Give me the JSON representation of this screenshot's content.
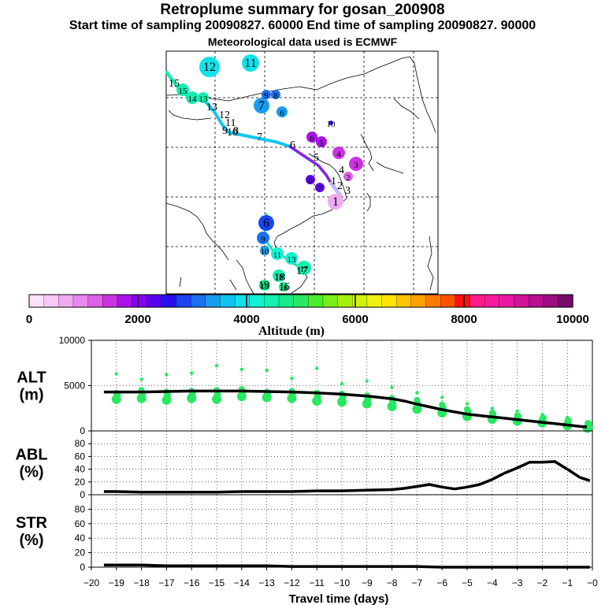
{
  "titles": {
    "line1": "Retroplume summary for gosan_200908",
    "line2": "Start time of sampling 20090827. 60000     End time of sampling 20090827. 90000",
    "line3": "Meteorological data used is ECMWF"
  },
  "colorbar": {
    "label": "Altitude (m)",
    "ticks": [
      "0",
      "2000",
      "4000",
      "6000",
      "8000",
      "10000"
    ],
    "colors": [
      "#fbe0fb",
      "#f6c8f6",
      "#f0aaf0",
      "#e888ec",
      "#dd60e6",
      "#cc33e0",
      "#aa11e8",
      "#8800f0",
      "#5a00ea",
      "#2a10ec",
      "#1a44f0",
      "#1a70f0",
      "#189cf0",
      "#10c4f0",
      "#10e2ea",
      "#12f2d2",
      "#14eeb0",
      "#18ea88",
      "#28e860",
      "#48ec30",
      "#78ee18",
      "#a6f010",
      "#cef20e",
      "#f0f00e",
      "#ffe400",
      "#ffc400",
      "#ffa000",
      "#ff7a00",
      "#ff5000",
      "#ff1010",
      "#ff1888",
      "#f8189a",
      "#e818a0",
      "#d01498",
      "#b81090",
      "#9a0c80",
      "#7a0a6a"
    ]
  },
  "map": {
    "path_labels": [
      "15",
      "13",
      "12",
      "11",
      "10",
      "9",
      "8",
      "7",
      "6",
      "5",
      "4",
      "3",
      "2",
      "1",
      "19",
      "18",
      "17",
      "16"
    ],
    "clusters": [
      {
        "label": "12",
        "color": "#10e2ea"
      },
      {
        "label": "11",
        "color": "#10e2ea"
      },
      {
        "label": "15",
        "color": "#14eeb0"
      },
      {
        "label": "14",
        "color": "#14eeb0"
      },
      {
        "label": "13",
        "color": "#14eeb0"
      },
      {
        "label": "9",
        "color": "#1a70f0"
      },
      {
        "label": "8",
        "color": "#1a70f0"
      },
      {
        "label": "7",
        "color": "#189cf0"
      },
      {
        "label": "6",
        "color": "#189cf0"
      },
      {
        "label": "10",
        "color": "#2a10ec"
      },
      {
        "label": "6",
        "color": "#aa11e8"
      },
      {
        "label": "5",
        "color": "#aa11e8"
      },
      {
        "label": "4",
        "color": "#cc33e0"
      },
      {
        "label": "3",
        "color": "#cc33e0"
      },
      {
        "label": "2",
        "color": "#dd60e6"
      },
      {
        "label": "1",
        "color": "#f0aaf0"
      },
      {
        "label": "8",
        "color": "#5a00ea"
      },
      {
        "label": "7",
        "color": "#5a00ea"
      },
      {
        "label": "6",
        "color": "#1a44f0"
      },
      {
        "label": "9",
        "color": "#1a70f0"
      },
      {
        "label": "10",
        "color": "#189cf0"
      },
      {
        "label": "11",
        "color": "#12f2d2"
      },
      {
        "label": "13",
        "color": "#12f2d2"
      },
      {
        "label": "17",
        "color": "#14eeb0"
      },
      {
        "label": "18",
        "color": "#14eeb0"
      },
      {
        "label": "19",
        "color": "#18ea88"
      },
      {
        "label": "16",
        "color": "#18ea88"
      }
    ]
  },
  "chart_data": [
    {
      "type": "line",
      "title": "ALT (m)",
      "panel_label_1": "ALT",
      "panel_label_2": "(m)",
      "xlabel": "Travel time (days)",
      "x": [
        -19.5,
        -19,
        -18,
        -17,
        -16,
        -15,
        -14,
        -13,
        -12,
        -11,
        -10,
        -9,
        -8,
        -7.5,
        -7,
        -6.5,
        -6,
        -5.5,
        -5,
        -4.5,
        -4,
        -3.5,
        -3,
        -2.5,
        -2,
        -1.5,
        -1,
        -0.5,
        -0.1
      ],
      "y": [
        4300,
        4300,
        4300,
        4350,
        4400,
        4400,
        4400,
        4350,
        4300,
        4200,
        4050,
        3850,
        3550,
        3300,
        2950,
        2650,
        2350,
        2100,
        1850,
        1700,
        1550,
        1400,
        1250,
        1100,
        950,
        800,
        650,
        500,
        400
      ],
      "ylim": [
        0,
        10000
      ],
      "yticks": [
        "0",
        "5000",
        "10000"
      ],
      "scatter_x": [
        -19,
        -18,
        -17,
        -16,
        -15,
        -14,
        -13,
        -12,
        -11,
        -10,
        -9,
        -8,
        -7,
        -6,
        -5,
        -4,
        -3,
        -2,
        -1,
        -0.2
      ],
      "scatter_y": [
        [
          3500,
          4200,
          6300
        ],
        [
          3600,
          4500,
          5700
        ],
        [
          3400,
          4300,
          6200
        ],
        [
          3600,
          4400,
          6400
        ],
        [
          3500,
          4500,
          7200
        ],
        [
          3800,
          4600,
          6800
        ],
        [
          3700,
          4300,
          6700
        ],
        [
          3600,
          4400,
          5800
        ],
        [
          3300,
          4200,
          6900
        ],
        [
          3200,
          4100,
          5200
        ],
        [
          3000,
          3900,
          5500
        ],
        [
          2700,
          3600,
          4800
        ],
        [
          2400,
          3400,
          4200
        ],
        [
          2000,
          2900,
          3700
        ],
        [
          1600,
          2400,
          3000
        ],
        [
          1300,
          2000,
          2500
        ],
        [
          1100,
          1700,
          2200
        ],
        [
          900,
          1300,
          1800
        ],
        [
          600,
          1000,
          1500
        ],
        [
          300,
          500,
          700
        ]
      ],
      "scatter_color": "#28e860",
      "line_color": "#000000"
    },
    {
      "type": "line",
      "title": "ABL (%)",
      "panel_label_1": "ABL",
      "panel_label_2": "(%)",
      "x": [
        -19.5,
        -19,
        -18,
        -17,
        -16,
        -15,
        -14,
        -13,
        -12,
        -11,
        -10,
        -9,
        -8,
        -7.5,
        -7,
        -6.5,
        -6,
        -5.5,
        -5,
        -4.5,
        -4,
        -3.5,
        -3,
        -2.5,
        -2,
        -1.5,
        -1,
        -0.5,
        -0.1
      ],
      "y": [
        5,
        5,
        4,
        4,
        4,
        4,
        5,
        5,
        5,
        6,
        6,
        7,
        8,
        10,
        13,
        16,
        12,
        9,
        12,
        16,
        24,
        34,
        42,
        51,
        51,
        52,
        40,
        27,
        22
      ],
      "ylim": [
        0,
        100
      ],
      "yticks": [
        "0",
        "20",
        "40",
        "60",
        "80"
      ]
    },
    {
      "type": "line",
      "title": "STR (%)",
      "panel_label_1": "STR",
      "panel_label_2": "(%)",
      "x": [
        -19.5,
        -19,
        -18,
        -17,
        -16,
        -15,
        -14,
        -13,
        -12,
        -11,
        -10,
        -9,
        -8,
        -7,
        -6,
        -5,
        -4,
        -3,
        -2,
        -1,
        -0.1
      ],
      "y": [
        3,
        3,
        3,
        2,
        2,
        2,
        2,
        2,
        1,
        1,
        1,
        1,
        1,
        1,
        0,
        0,
        0,
        0,
        0,
        0,
        0
      ],
      "ylim": [
        0,
        100
      ],
      "yticks": [
        "0",
        "20",
        "40",
        "60",
        "80"
      ]
    }
  ],
  "xaxis": {
    "ticks": [
      "−20",
      "−19",
      "−18",
      "−17",
      "−16",
      "−15",
      "−14",
      "−13",
      "−12",
      "−11",
      "−10",
      "−9",
      "−8",
      "−7",
      "−6",
      "−5",
      "−4",
      "−3",
      "−2",
      "−1",
      "−0"
    ],
    "label": "Travel time (days)"
  }
}
